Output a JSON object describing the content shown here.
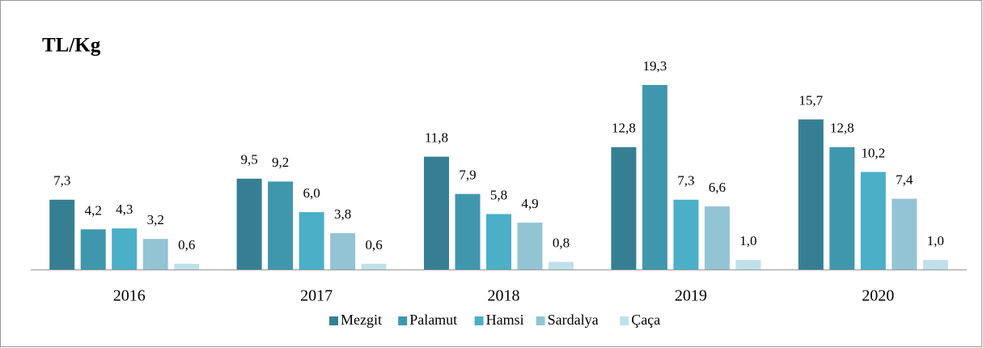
{
  "chart_data": {
    "type": "bar",
    "title": "TL/Kg",
    "categories": [
      "2016",
      "2017",
      "2018",
      "2019",
      "2020"
    ],
    "series": [
      {
        "name": "Mezgit",
        "color": "#367f92",
        "values": [
          7.3,
          9.5,
          11.8,
          12.8,
          15.7
        ],
        "value_labels": [
          "7,3",
          "9,5",
          "11,8",
          "12,8",
          "15,7"
        ]
      },
      {
        "name": "Palamut",
        "color": "#3f97ae",
        "values": [
          4.2,
          9.2,
          7.9,
          19.3,
          12.8
        ],
        "value_labels": [
          "4,2",
          "9,2",
          "7,9",
          "19,3",
          "12,8"
        ]
      },
      {
        "name": "Hamsi",
        "color": "#4bafc8",
        "values": [
          4.3,
          6.0,
          5.8,
          7.3,
          10.2
        ],
        "value_labels": [
          "4,3",
          "6,0",
          "5,8",
          "7,3",
          "10,2"
        ]
      },
      {
        "name": "Sardalya",
        "color": "#93c4d4",
        "values": [
          3.2,
          3.8,
          4.9,
          6.6,
          7.4
        ],
        "value_labels": [
          "3,2",
          "3,8",
          "4,9",
          "6,6",
          "7,4"
        ]
      },
      {
        "name": "Çaça",
        "color": "#bfe0ea",
        "values": [
          0.6,
          0.6,
          0.8,
          1.0,
          1.0
        ],
        "value_labels": [
          "0,6",
          "0,6",
          "0,8",
          "1,0",
          "1,0"
        ]
      }
    ],
    "legend": "bottom"
  }
}
